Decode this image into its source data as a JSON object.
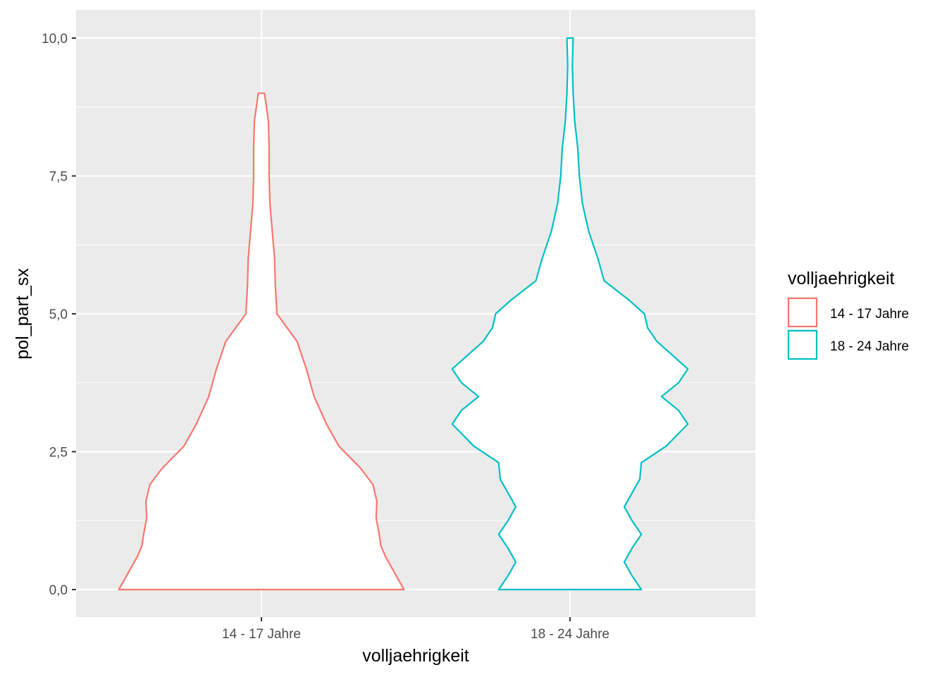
{
  "chart_data": {
    "type": "violin",
    "xlabel": "volljaehrigkeit",
    "ylabel": "pol_part_sx",
    "categories": [
      "14 - 17 Jahre",
      "18 - 24 Jahre"
    ],
    "y_ticks": [
      "0,0",
      "2,5",
      "5,0",
      "7,5",
      "10,0"
    ],
    "y_tick_values": [
      0,
      2.5,
      5,
      7.5,
      10
    ],
    "ylim": [
      -0.5,
      10.5
    ],
    "grid": true,
    "legend": {
      "title": "volljaehrigkeit",
      "placement": "right",
      "entries": [
        "14 - 17 Jahre",
        "18 - 24 Jahre"
      ]
    },
    "series": [
      {
        "name": "14 - 17 Jahre",
        "color": "#F8766D",
        "profile": [
          [
            0,
            0.92
          ],
          [
            0.1,
            0.9
          ],
          [
            0.2,
            0.88
          ],
          [
            0.4,
            0.84
          ],
          [
            0.6,
            0.8
          ],
          [
            0.8,
            0.77
          ],
          [
            1.0,
            0.76
          ],
          [
            1.3,
            0.74
          ],
          [
            1.6,
            0.745
          ],
          [
            1.9,
            0.72
          ],
          [
            2.2,
            0.64
          ],
          [
            2.6,
            0.5
          ],
          [
            3.0,
            0.42
          ],
          [
            3.5,
            0.34
          ],
          [
            4.0,
            0.29
          ],
          [
            4.5,
            0.23
          ],
          [
            5.0,
            0.1
          ],
          [
            5.5,
            0.09
          ],
          [
            6.0,
            0.085
          ],
          [
            6.5,
            0.07
          ],
          [
            7.0,
            0.055
          ],
          [
            7.5,
            0.05
          ],
          [
            8.0,
            0.05
          ],
          [
            8.5,
            0.045
          ],
          [
            9.0,
            0.02
          ]
        ]
      },
      {
        "name": "18 - 24 Jahre",
        "color": "#00BFC4",
        "profile": [
          [
            0,
            0.46
          ],
          [
            0.25,
            0.4
          ],
          [
            0.5,
            0.35
          ],
          [
            0.75,
            0.4
          ],
          [
            1.0,
            0.46
          ],
          [
            1.25,
            0.4
          ],
          [
            1.5,
            0.35
          ],
          [
            1.75,
            0.4
          ],
          [
            2.0,
            0.45
          ],
          [
            2.3,
            0.46
          ],
          [
            2.6,
            0.62
          ],
          [
            3.0,
            0.76
          ],
          [
            3.25,
            0.7
          ],
          [
            3.5,
            0.59
          ],
          [
            3.75,
            0.7
          ],
          [
            4.0,
            0.76
          ],
          [
            4.25,
            0.66
          ],
          [
            4.5,
            0.56
          ],
          [
            4.75,
            0.5
          ],
          [
            5.0,
            0.48
          ],
          [
            5.25,
            0.38
          ],
          [
            5.6,
            0.22
          ],
          [
            6.0,
            0.18
          ],
          [
            6.5,
            0.12
          ],
          [
            7.0,
            0.08
          ],
          [
            7.5,
            0.06
          ],
          [
            8.0,
            0.05
          ],
          [
            8.5,
            0.03
          ],
          [
            9.0,
            0.02
          ],
          [
            9.5,
            0.015
          ],
          [
            10.0,
            0.02
          ]
        ]
      }
    ]
  }
}
